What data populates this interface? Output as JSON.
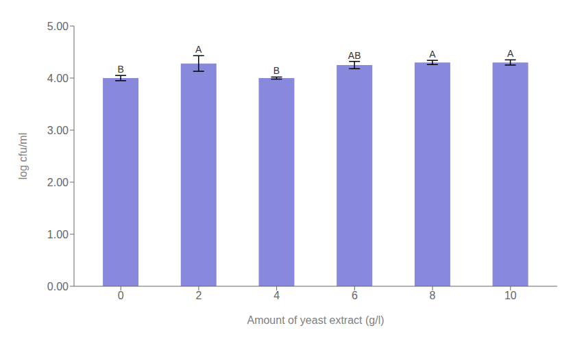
{
  "chart_data": {
    "type": "bar",
    "x": [
      0,
      2,
      4,
      6,
      8,
      10
    ],
    "values": [
      4.0,
      4.28,
      4.0,
      4.25,
      4.3,
      4.3
    ],
    "errors": [
      0.05,
      0.15,
      0.02,
      0.07,
      0.04,
      0.05
    ],
    "significance_labels": [
      "B",
      "A",
      "B",
      "AB",
      "A",
      "A"
    ],
    "color": "#8888dd",
    "xlabel": "Amount of yeast extract (g/l)",
    "ylabel": "log cfu/ml",
    "xlim": [
      -1.2,
      11.2
    ],
    "xticks": [
      0,
      2,
      4,
      6,
      8,
      10
    ],
    "ylim": [
      0.0,
      5.0
    ],
    "yticks": [
      {
        "value": 0.0,
        "label": "0.00"
      },
      {
        "value": 1.0,
        "label": "1.00"
      },
      {
        "value": 2.0,
        "label": "2.00"
      },
      {
        "value": 3.0,
        "label": "3.00"
      },
      {
        "value": 4.0,
        "label": "4.00"
      },
      {
        "value": 5.0,
        "label": "5.00"
      }
    ],
    "grid": false
  }
}
